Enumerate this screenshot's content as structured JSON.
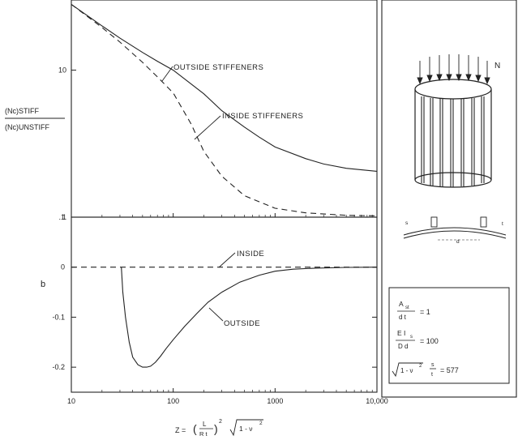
{
  "chart_data": [
    {
      "type": "line",
      "panel": "upper",
      "ylabel_top": "(Nc)STIFF",
      "ylabel_bottom": "(Nc)UNSTIFF",
      "xscale": "log",
      "yscale": "log",
      "xlim": [
        10,
        10000
      ],
      "ylim": [
        1,
        30
      ],
      "x_ticks": [
        "10",
        "100",
        "1000",
        "10,000"
      ],
      "y_ticks": [
        "1",
        "10"
      ],
      "series": [
        {
          "name": "OUTSIDE STIFFENERS",
          "style": "solid",
          "x": [
            10,
            20,
            30,
            50,
            70,
            100,
            200,
            300,
            500,
            700,
            1000,
            2000,
            3000,
            5000,
            10000
          ],
          "y": [
            28,
            20,
            16.5,
            13.2,
            11.5,
            10.0,
            6.9,
            5.3,
            4.1,
            3.5,
            3.0,
            2.5,
            2.3,
            2.15,
            2.05
          ]
        },
        {
          "name": "INSIDE STIFFENERS",
          "style": "dashed",
          "x": [
            10,
            20,
            30,
            50,
            70,
            100,
            150,
            200,
            300,
            500,
            1000,
            2000,
            5000,
            10000
          ],
          "y": [
            28,
            19.5,
            15.5,
            11.3,
            9.0,
            7.0,
            4.3,
            2.8,
            1.9,
            1.4,
            1.15,
            1.07,
            1.03,
            1.02
          ]
        }
      ]
    },
    {
      "type": "line",
      "panel": "lower",
      "ylabel": "b",
      "xlabel_main": "Z =",
      "xlabel_frac_num": "L",
      "xlabel_frac_den": "R t",
      "xlabel_exp": "2",
      "xlabel_root": "1 - ν",
      "xlabel_root_exp": "2",
      "xscale": "log",
      "xlim": [
        10,
        10000
      ],
      "ylim": [
        -0.25,
        0.1
      ],
      "x_ticks": [
        "10",
        "100",
        "1000",
        "10,000"
      ],
      "y_ticks": [
        ".1",
        "0",
        "-0.1",
        "-0.2"
      ],
      "series": [
        {
          "name": "INSIDE",
          "style": "dashed",
          "x": [
            10,
            100,
            1000,
            10000
          ],
          "y": [
            0,
            0,
            0,
            0
          ]
        },
        {
          "name": "OUTSIDE",
          "style": "solid",
          "x": [
            31,
            32,
            34,
            37,
            40,
            45,
            50,
            55,
            60,
            67,
            75,
            85,
            100,
            130,
            170,
            220,
            300,
            450,
            700,
            1000,
            1500,
            2500,
            5000,
            10000
          ],
          "y": [
            0,
            -0.05,
            -0.1,
            -0.15,
            -0.18,
            -0.195,
            -0.2,
            -0.2,
            -0.198,
            -0.19,
            -0.178,
            -0.163,
            -0.145,
            -0.118,
            -0.093,
            -0.07,
            -0.05,
            -0.03,
            -0.016,
            -0.008,
            -0.004,
            -0.002,
            -0.0005,
            0
          ]
        }
      ]
    }
  ],
  "inset": {
    "load_label": "N",
    "section_labels": [
      "s",
      "t",
      "d"
    ],
    "params": [
      {
        "num": "A",
        "num_sub": "st",
        "den": "d t",
        "value": "= 1"
      },
      {
        "num": "E I",
        "num_sub": "s",
        "den": "D d",
        "value": "= 100"
      },
      {
        "root": "1 - ν",
        "root_exp": "2",
        "ratio_num": "s",
        "ratio_den": "t",
        "value": "= 577"
      }
    ]
  },
  "colors": {
    "ink": "#222222",
    "paper": "#ffffff"
  }
}
